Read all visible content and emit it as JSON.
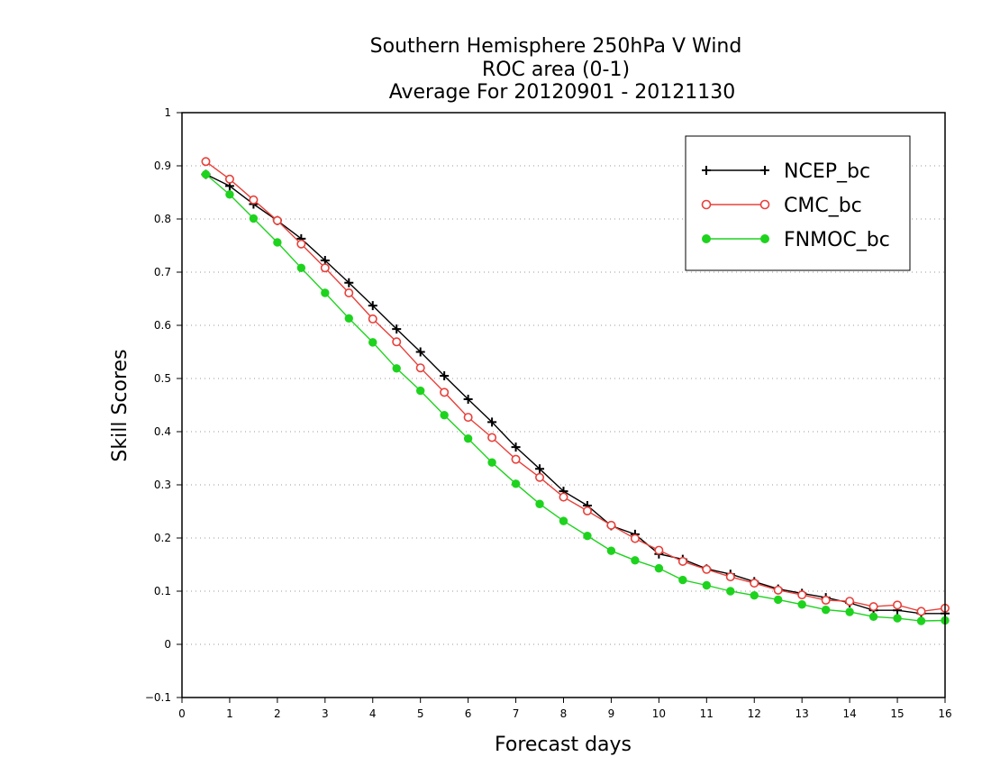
{
  "chart_data": {
    "type": "line",
    "title": "Southern Hemisphere 250hPa V Wind",
    "subtitle": "ROC area (0-1)",
    "subtitle2": "Average For 20120901 - 20121130",
    "xlabel": "Forecast days",
    "ylabel": "Skill Scores",
    "xlim": [
      0,
      16
    ],
    "ylim": [
      -0.1,
      1
    ],
    "xticks": [
      "0",
      "1",
      "2",
      "3",
      "4",
      "5",
      "6",
      "7",
      "8",
      "9",
      "10",
      "11",
      "12",
      "13",
      "14",
      "15",
      "16"
    ],
    "yticks": [
      "−0.1",
      "0",
      "0.1",
      "0.2",
      "0.3",
      "0.4",
      "0.5",
      "0.6",
      "0.7",
      "0.8",
      "0.9",
      "1"
    ],
    "grid": "horizontal-dotted",
    "legend_position": "top-right",
    "x": [
      0.5,
      1,
      1.5,
      2,
      2.5,
      3,
      3.5,
      4,
      4.5,
      5,
      5.5,
      6,
      6.5,
      7,
      7.5,
      8,
      8.5,
      9,
      9.5,
      10,
      10.5,
      11,
      11.5,
      12,
      12.5,
      13,
      13.5,
      14,
      14.5,
      15,
      15.5,
      16
    ],
    "series": [
      {
        "name": "NCEP_bc",
        "color": "#000000",
        "marker": "plus",
        "values": [
          0.884,
          0.862,
          0.828,
          0.797,
          0.763,
          0.722,
          0.68,
          0.637,
          0.593,
          0.55,
          0.505,
          0.461,
          0.418,
          0.371,
          0.33,
          0.288,
          0.261,
          0.223,
          0.207,
          0.17,
          0.16,
          0.142,
          0.132,
          0.118,
          0.104,
          0.096,
          0.088,
          0.078,
          0.064,
          0.064,
          0.058,
          0.058
        ]
      },
      {
        "name": "CMC_bc",
        "color": "#e8403a",
        "marker": "open-circle",
        "values": [
          0.908,
          0.875,
          0.836,
          0.797,
          0.753,
          0.708,
          0.661,
          0.612,
          0.569,
          0.52,
          0.474,
          0.427,
          0.389,
          0.348,
          0.314,
          0.277,
          0.251,
          0.224,
          0.199,
          0.177,
          0.156,
          0.141,
          0.127,
          0.115,
          0.102,
          0.093,
          0.083,
          0.081,
          0.071,
          0.074,
          0.062,
          0.068
        ]
      },
      {
        "name": "FNMOC_bc",
        "color": "#1ed31e",
        "marker": "filled-circle",
        "values": [
          0.884,
          0.846,
          0.801,
          0.756,
          0.708,
          0.661,
          0.613,
          0.568,
          0.519,
          0.477,
          0.431,
          0.387,
          0.342,
          0.302,
          0.264,
          0.232,
          0.204,
          0.176,
          0.158,
          0.143,
          0.121,
          0.111,
          0.1,
          0.092,
          0.084,
          0.075,
          0.065,
          0.061,
          0.052,
          0.049,
          0.044,
          0.045
        ]
      }
    ]
  }
}
